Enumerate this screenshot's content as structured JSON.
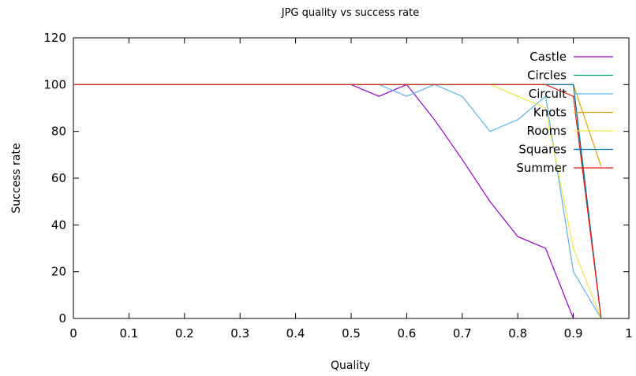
{
  "chart_data": {
    "type": "line",
    "title": "JPG quality vs success rate",
    "xlabel": "Quality",
    "ylabel": "Success rate",
    "xlim": [
      0,
      1
    ],
    "ylim": [
      0,
      120
    ],
    "xticks": [
      "0",
      "0.1",
      "0.2",
      "0.3",
      "0.4",
      "0.5",
      "0.6",
      "0.7",
      "0.8",
      "0.9",
      "1"
    ],
    "yticks": [
      "0",
      "20",
      "40",
      "60",
      "80",
      "100",
      "120"
    ],
    "grid": false,
    "legend_position": "top-right",
    "series": [
      {
        "name": "Castle",
        "color": "#9400d3",
        "x": [
          0,
          0.5,
          0.55,
          0.6,
          0.65,
          0.7,
          0.75,
          0.8,
          0.85,
          0.9
        ],
        "y": [
          100,
          100,
          95,
          100,
          85,
          68,
          50,
          35,
          30,
          0
        ]
      },
      {
        "name": "Circles",
        "color": "#009e73",
        "x": [
          0,
          0.75,
          0.85,
          0.9,
          0.95
        ],
        "y": [
          100,
          100,
          100,
          100,
          0
        ]
      },
      {
        "name": "Circuit",
        "color": "#56b4e9",
        "x": [
          0,
          0.55,
          0.6,
          0.65,
          0.7,
          0.75,
          0.8,
          0.85,
          0.9,
          0.95
        ],
        "y": [
          100,
          100,
          95,
          100,
          95,
          80,
          85,
          95,
          20,
          0
        ]
      },
      {
        "name": "Knots",
        "color": "#e69f00",
        "x": [
          0,
          0.85,
          0.9,
          0.95
        ],
        "y": [
          100,
          100,
          100,
          65
        ]
      },
      {
        "name": "Rooms",
        "color": "#f0e442",
        "x": [
          0,
          0.75,
          0.85,
          0.9,
          0.95
        ],
        "y": [
          100,
          100,
          90,
          30,
          0
        ]
      },
      {
        "name": "Squares",
        "color": "#0072b2",
        "x": [
          0,
          0.85,
          0.9,
          0.95
        ],
        "y": [
          100,
          100,
          100,
          0
        ]
      },
      {
        "name": "Summer",
        "color": "#e51e10",
        "x": [
          0,
          0.85,
          0.9,
          0.95
        ],
        "y": [
          100,
          100,
          95,
          0
        ]
      }
    ]
  }
}
